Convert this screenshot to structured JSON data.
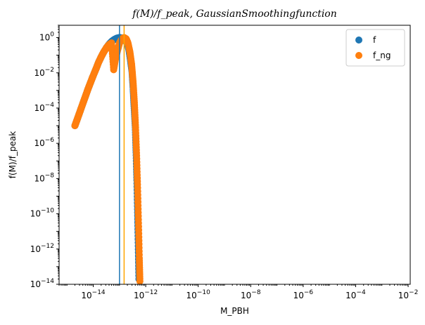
{
  "chart_data": {
    "type": "scatter",
    "title": "f(M)/f_peak, GaussianSmoothingfunction",
    "xlabel": "M_PBH",
    "ylabel": "f(M)/f_peak",
    "xscale": "log",
    "yscale": "log",
    "xlim": [
      5e-16,
      0.012
    ],
    "ylim": [
      1e-14,
      5
    ],
    "x_ticks": [
      1e-14,
      1e-12,
      1e-10,
      1e-08,
      1e-06,
      0.0001,
      0.01
    ],
    "x_tick_labels": [
      {
        "base": "10",
        "exp": "−14"
      },
      {
        "base": "10",
        "exp": "−12"
      },
      {
        "base": "10",
        "exp": "−10"
      },
      {
        "base": "10",
        "exp": "−8"
      },
      {
        "base": "10",
        "exp": "−6"
      },
      {
        "base": "10",
        "exp": "−4"
      },
      {
        "base": "10",
        "exp": "−2"
      }
    ],
    "y_ticks": [
      1e-14,
      1e-12,
      1e-10,
      1e-08,
      1e-06,
      0.0001,
      0.01,
      1
    ],
    "y_tick_labels": [
      {
        "base": "10",
        "exp": "−14"
      },
      {
        "base": "10",
        "exp": "−12"
      },
      {
        "base": "10",
        "exp": "−10"
      },
      {
        "base": "10",
        "exp": "−8"
      },
      {
        "base": "10",
        "exp": "−6"
      },
      {
        "base": "10",
        "exp": "−4"
      },
      {
        "base": "10",
        "exp": "−2"
      },
      {
        "base": "10",
        "exp": "0"
      }
    ],
    "legend_position": "top-right",
    "vertical_lines": [
      {
        "x": 1e-13,
        "color": "#1f77b4"
      },
      {
        "x": 1.5e-13,
        "color": "#ffa500"
      }
    ],
    "series": [
      {
        "name": "f",
        "color": "#1f77b4",
        "points": [
          [
            2e-15,
            1e-05
          ],
          [
            2.5e-15,
            2.5e-05
          ],
          [
            3.2e-15,
            7e-05
          ],
          [
            4e-15,
            0.00018
          ],
          [
            5e-15,
            0.00045
          ],
          [
            6.3e-15,
            0.0012
          ],
          [
            8e-15,
            0.003
          ],
          [
            1e-14,
            0.007
          ],
          [
            1.3e-14,
            0.018
          ],
          [
            1.6e-14,
            0.04
          ],
          [
            2e-14,
            0.08
          ],
          [
            2.5e-14,
            0.15
          ],
          [
            3.2e-14,
            0.27
          ],
          [
            4e-14,
            0.42
          ],
          [
            5e-14,
            0.6
          ],
          [
            6.3e-14,
            0.78
          ],
          [
            8e-14,
            0.93
          ],
          [
            1e-13,
            1.0
          ],
          [
            1.3e-13,
            0.93
          ],
          [
            1.6e-13,
            0.75
          ],
          [
            2e-13,
            0.45
          ],
          [
            2.3e-13,
            0.2
          ],
          [
            2.6e-13,
            0.06
          ],
          [
            3e-13,
            0.012
          ],
          [
            3.3e-13,
            0.0015
          ],
          [
            3.6e-13,
            0.00013
          ],
          [
            4e-13,
            8e-06
          ],
          [
            4.3e-13,
            3e-07
          ],
          [
            4.6e-13,
            8e-09
          ],
          [
            4.9e-13,
            1.2e-10
          ],
          [
            5.2e-13,
            1.5e-12
          ],
          [
            5.5e-13,
            2e-14
          ]
        ]
      },
      {
        "name": "f_ng",
        "color": "#ff7f0e",
        "points": [
          [
            2e-15,
            1e-05
          ],
          [
            2.5e-15,
            2.5e-05
          ],
          [
            3.2e-15,
            7e-05
          ],
          [
            4e-15,
            0.00018
          ],
          [
            5e-15,
            0.00045
          ],
          [
            6.3e-15,
            0.0012
          ],
          [
            8e-15,
            0.003
          ],
          [
            1e-14,
            0.007
          ],
          [
            1.3e-14,
            0.018
          ],
          [
            1.6e-14,
            0.04
          ],
          [
            2e-14,
            0.08
          ],
          [
            2.5e-14,
            0.15
          ],
          [
            3.2e-14,
            0.27
          ],
          [
            4e-14,
            0.4
          ],
          [
            5e-14,
            0.5
          ],
          [
            6e-14,
            0.015
          ],
          [
            7e-14,
            0.06
          ],
          [
            8.5e-14,
            0.2
          ],
          [
            1e-13,
            0.5
          ],
          [
            1.25e-13,
            0.85
          ],
          [
            1.5e-13,
            1.0
          ],
          [
            1.8e-13,
            0.85
          ],
          [
            2.1e-13,
            0.5
          ],
          [
            2.5e-13,
            0.15
          ],
          [
            2.9e-13,
            0.03
          ],
          [
            3.3e-13,
            0.003
          ],
          [
            3.7e-13,
            0.0002
          ],
          [
            4.1e-13,
            8e-06
          ],
          [
            4.5e-13,
            2e-07
          ],
          [
            4.9e-13,
            3e-09
          ],
          [
            5.3e-13,
            3e-11
          ],
          [
            5.7e-13,
            3e-13
          ],
          [
            6e-13,
            1.5e-14
          ]
        ]
      }
    ]
  }
}
